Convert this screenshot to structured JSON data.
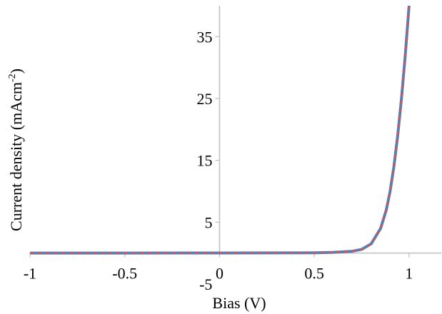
{
  "chart_data": {
    "type": "line",
    "xlabel": "Bias (V)",
    "ylabel_main": "Current density (mAcm",
    "ylabel_sup": "-2",
    "ylabel_tail": ")",
    "xlim": [
      -1,
      1.17
    ],
    "ylim": [
      -5,
      40
    ],
    "x_ticks": [
      -1,
      -0.5,
      0,
      0.5,
      1
    ],
    "x_tick_labels": [
      "-1",
      "-0.5",
      "0",
      "0.5",
      "1"
    ],
    "y_ticks": [
      -5,
      5,
      15,
      25,
      35
    ],
    "y_tick_labels": [
      "-5",
      "5",
      "15",
      "25",
      "35"
    ],
    "grid": false,
    "legend": "none",
    "series": [
      {
        "color": "#4f81bd",
        "dash": "solid",
        "x": [
          -1,
          -0.5,
          0,
          0.5,
          0.6,
          0.7,
          0.75,
          0.8,
          0.85,
          0.88,
          0.9,
          0.92,
          0.94,
          0.96,
          0.98,
          1.0
        ],
        "y": [
          0,
          0,
          0.02,
          0.05,
          0.12,
          0.3,
          0.6,
          1.5,
          4.0,
          7.0,
          10.0,
          14.0,
          19.0,
          25.0,
          32.0,
          40.0
        ]
      },
      {
        "color": "#e0504a",
        "dash": "dashed",
        "x": [
          -1,
          -0.5,
          0,
          0.5,
          0.6,
          0.7,
          0.75,
          0.8,
          0.85,
          0.88,
          0.9,
          0.92,
          0.94,
          0.96,
          0.98,
          1.0
        ],
        "y": [
          0,
          0,
          0.02,
          0.05,
          0.12,
          0.3,
          0.6,
          1.5,
          4.0,
          7.0,
          10.0,
          14.0,
          19.0,
          25.0,
          32.0,
          40.0
        ]
      }
    ]
  }
}
